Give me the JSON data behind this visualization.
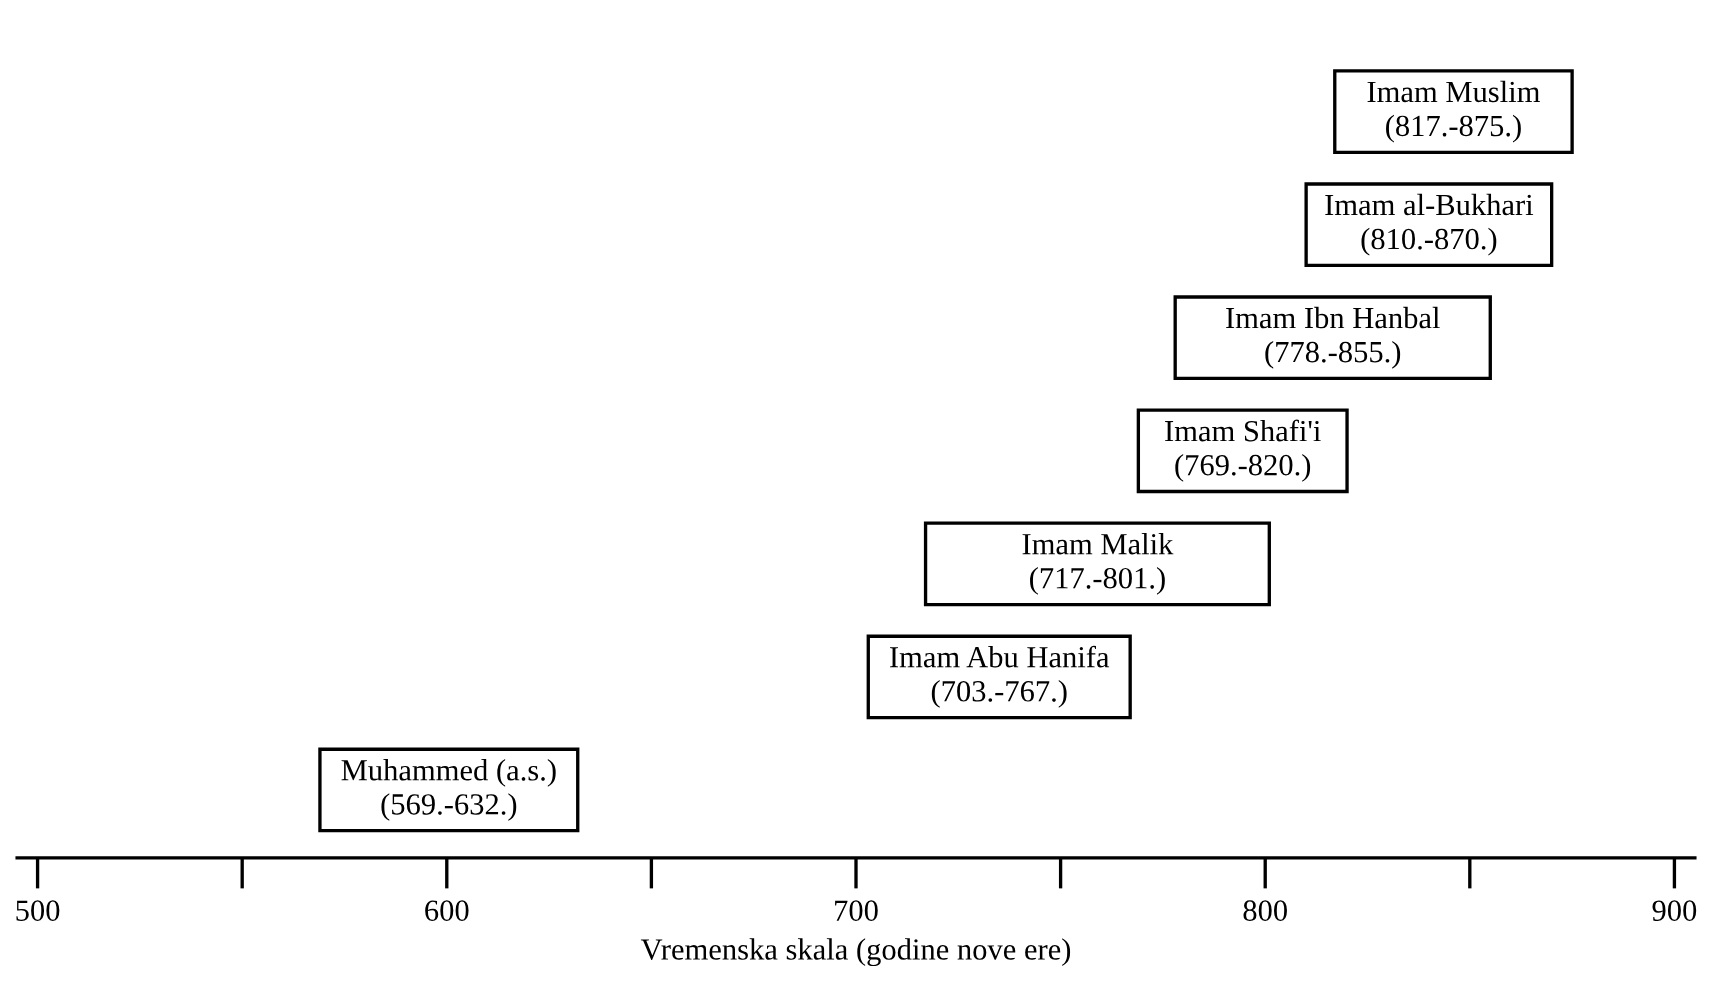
{
  "chart_data": {
    "type": "bar",
    "orientation": "horizontal",
    "categories": [
      null,
      null,
      null,
      null,
      null,
      null,
      null
    ],
    "base": [
      817,
      810,
      778,
      769,
      717,
      703,
      569
    ],
    "values": [
      58,
      60,
      77,
      51,
      84,
      64,
      63
    ],
    "value_labels": [
      "Imam Muslim\n(817.-875.)",
      "Imam al-Bukhari\n(810.-870.)",
      "Imam Ibn Hanbal\n(778.-855.)",
      "Imam Shafi'i\n(769.-820.)",
      "Imam Malik\n(717.-801.)",
      "Imam Abu Hanifa\n(703.-767.)",
      "Muhammed (a.s.)\n(569.-632.)"
    ],
    "color": "#ffffff",
    "xlabel": "Vremenska skala (godine nove ere)",
    "xlim": [
      495,
      905
    ],
    "xticks": [
      500,
      {
        "value": 550,
        "label": null
      },
      600,
      {
        "value": 650,
        "label": null
      },
      700,
      {
        "value": 750,
        "label": null
      },
      800,
      {
        "value": 850,
        "label": null
      },
      900
    ],
    "tick_labels": "x",
    "grid": false,
    "legend": false
  }
}
